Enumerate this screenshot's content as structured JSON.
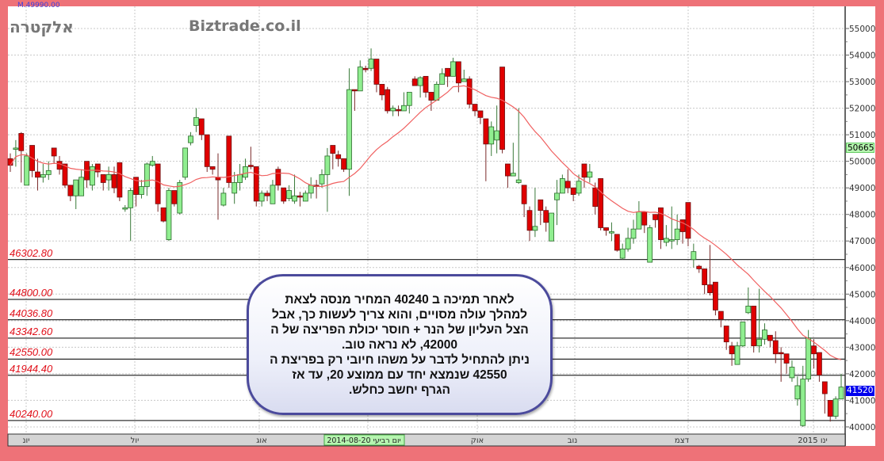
{
  "header": {
    "symbol_name": "אלקטרה",
    "watermark": "Biztrade.co.il",
    "top_readout": "M.49990.00"
  },
  "annotation": {
    "lines": [
      "לאחר תמיכה  ב  40240  המחיר  מנסה  לצאת",
      "למהלך עולה   מסויים,  והוא  צריך לעשות כך, אבל",
      "הצל העליון  של  הנר +  חוסר יכולת הפריצה  של ה",
      "42000, לא  נראה  טוב.",
      "ניתן להתחיל לדבר  על משהו חיובי  רק  בפריצת ה",
      "42550  שנמצא  יחד   עם  ממוצע  20,  עד  אז",
      "הגרף  יחשב  כחלש."
    ]
  },
  "colors": {
    "frame": "#ee7278",
    "up": "#90ee90",
    "down": "#e00000",
    "ma": "#f06060",
    "level_text": "#e0101a",
    "last_price_tag": "#0000ee",
    "ma_tag": "#b6f5b0"
  },
  "chart_data": {
    "type": "candlestick",
    "ylim": [
      40000,
      55000
    ],
    "y_ticks": [
      "40000",
      "41000",
      "42000",
      "43000",
      "44000",
      "45000",
      "46000",
      "47000",
      "48000",
      "49000",
      "50000",
      "51000",
      "52000",
      "53000",
      "54000",
      "55000"
    ],
    "x_tick_labels": [
      "יונ",
      "יול",
      "אוג",
      "אוק",
      "נוב",
      "דצמ",
      "ינו 2015"
    ],
    "highlighted_date_label": "יום רביעי 2014-08-20",
    "grid": true,
    "moving_average_period": 20,
    "ma_value_label": "50665",
    "last_price_label": "41520",
    "levels": [
      "46302.80",
      "44800.00",
      "44036.80",
      "43342.60",
      "42550.00",
      "41944.40",
      "40240.00"
    ],
    "candles_ohlc": [
      [
        50100,
        50300,
        49600,
        49850
      ],
      [
        50450,
        50800,
        49800,
        50500
      ],
      [
        51050,
        51100,
        49200,
        50400
      ],
      [
        49100,
        50300,
        49100,
        50200
      ],
      [
        50600,
        50600,
        49400,
        49650
      ],
      [
        49600,
        50100,
        48900,
        49400
      ],
      [
        49400,
        49900,
        49200,
        49500
      ],
      [
        49500,
        50000,
        49300,
        49650
      ],
      [
        50500,
        50500,
        49900,
        50200
      ],
      [
        50000,
        50200,
        49500,
        49700
      ],
      [
        49900,
        49900,
        49000,
        49100
      ],
      [
        49100,
        49100,
        48500,
        48700
      ],
      [
        48700,
        49300,
        48200,
        49300
      ],
      [
        48700,
        49700,
        48700,
        49400
      ],
      [
        50000,
        50000,
        49000,
        49300
      ],
      [
        49100,
        49900,
        48900,
        49800
      ],
      [
        49900,
        49900,
        49400,
        49600
      ],
      [
        49500,
        49500,
        48900,
        49200
      ],
      [
        49300,
        49800,
        48900,
        49500
      ],
      [
        49500,
        49800,
        48800,
        49000
      ],
      [
        49950,
        49950,
        48500,
        48650
      ],
      [
        48200,
        48350,
        48100,
        48250
      ],
      [
        48250,
        49000,
        47000,
        48900
      ],
      [
        49400,
        49400,
        48300,
        48750
      ],
      [
        48750,
        49300,
        48600,
        49050
      ],
      [
        49050,
        49950,
        48700,
        49900
      ],
      [
        49850,
        50200,
        49800,
        50000
      ],
      [
        49900,
        49900,
        48100,
        48400
      ],
      [
        48250,
        48250,
        47700,
        47750
      ],
      [
        47050,
        49000,
        47000,
        48900
      ],
      [
        48900,
        48900,
        48300,
        48400
      ],
      [
        48050,
        49300,
        48000,
        49200
      ],
      [
        49400,
        50500,
        49300,
        50500
      ],
      [
        50700,
        51100,
        50600,
        50950
      ],
      [
        51350,
        52000,
        51100,
        51650
      ],
      [
        51600,
        51600,
        50800,
        51000
      ],
      [
        51000,
        51000,
        49600,
        49800
      ],
      [
        49800,
        49800,
        49500,
        49700
      ],
      [
        49400,
        50300,
        47800,
        49300
      ],
      [
        48350,
        49000,
        48300,
        48800
      ],
      [
        50950,
        50950,
        49000,
        49200
      ],
      [
        48800,
        49600,
        48400,
        49200
      ],
      [
        49200,
        49900,
        48900,
        49500
      ],
      [
        49400,
        50100,
        49300,
        49800
      ],
      [
        49850,
        50550,
        49700,
        49800
      ],
      [
        49800,
        49800,
        48300,
        48500
      ],
      [
        48500,
        48900,
        48300,
        48800
      ],
      [
        48800,
        48900,
        48500,
        48700
      ],
      [
        48400,
        49300,
        48400,
        49100
      ],
      [
        49700,
        49800,
        48900,
        49100
      ],
      [
        49000,
        49000,
        48400,
        48500
      ],
      [
        48600,
        49100,
        48500,
        48900
      ],
      [
        48500,
        49500,
        48400,
        48700
      ],
      [
        48700,
        48850,
        48300,
        48650
      ],
      [
        48500,
        48900,
        48500,
        48800
      ],
      [
        48800,
        49400,
        48600,
        49100
      ],
      [
        49100,
        49300,
        48600,
        49050
      ],
      [
        49150,
        49700,
        49000,
        49500
      ],
      [
        49500,
        50500,
        48100,
        50200
      ],
      [
        50600,
        50600,
        49700,
        50300
      ],
      [
        50250,
        50400,
        49800,
        50100
      ],
      [
        50100,
        50100,
        49600,
        49700
      ],
      [
        49700,
        53500,
        48700,
        52700
      ],
      [
        52700,
        52700,
        51900,
        52650
      ],
      [
        52650,
        53800,
        52650,
        53550
      ],
      [
        53500,
        53600,
        53350,
        53450
      ],
      [
        53500,
        54250,
        53400,
        53850
      ],
      [
        53850,
        53850,
        52600,
        52900
      ],
      [
        52900,
        52900,
        52300,
        52500
      ],
      [
        52700,
        52800,
        51800,
        51900
      ],
      [
        51900,
        52100,
        51700,
        52000
      ],
      [
        51950,
        52100,
        51700,
        51900
      ],
      [
        51900,
        52600,
        51900,
        52100
      ],
      [
        52100,
        52600,
        51800,
        52600
      ],
      [
        53100,
        53200,
        52900,
        52850
      ],
      [
        52850,
        53200,
        52400,
        53150
      ],
      [
        53200,
        53200,
        52400,
        52600
      ],
      [
        52600,
        52600,
        51900,
        52300
      ],
      [
        52300,
        53000,
        52300,
        52900
      ],
      [
        52900,
        53500,
        52900,
        53300
      ],
      [
        53500,
        53500,
        52800,
        53200
      ],
      [
        53200,
        53900,
        53200,
        53750
      ],
      [
        53750,
        53750,
        52600,
        52950
      ],
      [
        53000,
        53450,
        53000,
        53100
      ],
      [
        53100,
        53200,
        52000,
        52150
      ],
      [
        52150,
        52150,
        51700,
        51900
      ],
      [
        51900,
        51900,
        51400,
        51650
      ],
      [
        51600,
        51600,
        49250,
        50650
      ],
      [
        50650,
        51500,
        50200,
        51300
      ],
      [
        50800,
        52100,
        50300,
        51150
      ],
      [
        53550,
        53550,
        50300,
        50450
      ],
      [
        49900,
        49900,
        49000,
        49450
      ],
      [
        49450,
        50700,
        49450,
        49550
      ],
      [
        49200,
        52000,
        49150,
        49300
      ],
      [
        49100,
        49100,
        47900,
        48400
      ],
      [
        48150,
        48300,
        47000,
        47400
      ],
      [
        47400,
        49000,
        47150,
        47550
      ],
      [
        48550,
        48550,
        47600,
        48150
      ],
      [
        48150,
        48300,
        47350,
        47700
      ],
      [
        47000,
        48050,
        47000,
        48050
      ],
      [
        48550,
        49300,
        47600,
        48800
      ],
      [
        48800,
        49500,
        48800,
        49350
      ],
      [
        49250,
        49700,
        48800,
        49000
      ],
      [
        49000,
        49000,
        48500,
        48750
      ],
      [
        48800,
        49500,
        48700,
        49250
      ],
      [
        49900,
        49900,
        49000,
        49400
      ],
      [
        49400,
        49900,
        49200,
        49600
      ],
      [
        49000,
        49200,
        48000,
        48300
      ],
      [
        49350,
        49350,
        47400,
        47500
      ],
      [
        47500,
        47500,
        47200,
        47400
      ],
      [
        47300,
        47700,
        47000,
        47350
      ],
      [
        47250,
        47250,
        46600,
        46650
      ],
      [
        46350,
        46900,
        46300,
        46700
      ],
      [
        46700,
        47500,
        46600,
        47100
      ],
      [
        47100,
        47800,
        46900,
        47450
      ],
      [
        47450,
        48500,
        47450,
        48100
      ],
      [
        48100,
        48100,
        47300,
        47600
      ],
      [
        46200,
        47600,
        46200,
        47500
      ],
      [
        48000,
        48000,
        47500,
        47800
      ],
      [
        48250,
        48250,
        46700,
        47050
      ],
      [
        46950,
        47600,
        46800,
        47100
      ],
      [
        47000,
        48300,
        46700,
        47050
      ],
      [
        47050,
        48000,
        46850,
        47450
      ],
      [
        47800,
        47800,
        46900,
        47350
      ],
      [
        48450,
        48450,
        46800,
        47100
      ],
      [
        46300,
        46900,
        46000,
        46600
      ],
      [
        46050,
        46100,
        45800,
        45950
      ],
      [
        45950,
        45950,
        45000,
        45350
      ],
      [
        45350,
        46850,
        44950,
        45050
      ],
      [
        45450,
        45450,
        44200,
        44400
      ],
      [
        44350,
        44350,
        43750,
        44050
      ],
      [
        43800,
        43800,
        42900,
        43200
      ],
      [
        43050,
        43200,
        42300,
        42750
      ],
      [
        42350,
        43200,
        42350,
        43050
      ],
      [
        43050,
        43950,
        43000,
        43950
      ],
      [
        44300,
        45250,
        44250,
        44550
      ],
      [
        44550,
        44550,
        42800,
        43050
      ],
      [
        43050,
        45200,
        42800,
        43300
      ],
      [
        43300,
        43900,
        43100,
        43650
      ],
      [
        43450,
        43450,
        43000,
        43250
      ],
      [
        43250,
        43600,
        42400,
        42750
      ],
      [
        42800,
        43000,
        41700,
        42750
      ],
      [
        42750,
        42700,
        42000,
        42400
      ],
      [
        41850,
        42500,
        41700,
        42250
      ],
      [
        41050,
        41900,
        40800,
        41550
      ],
      [
        40050,
        42300,
        40000,
        41800
      ],
      [
        41800,
        43650,
        41700,
        43350
      ],
      [
        43050,
        43300,
        42200,
        42750
      ],
      [
        42800,
        42800,
        41700,
        41950
      ],
      [
        41700,
        41700,
        40500,
        41250
      ],
      [
        41000,
        41000,
        40200,
        40400
      ],
      [
        40400,
        41150,
        40300,
        41050
      ],
      [
        41050,
        42000,
        41050,
        41500
      ]
    ]
  }
}
